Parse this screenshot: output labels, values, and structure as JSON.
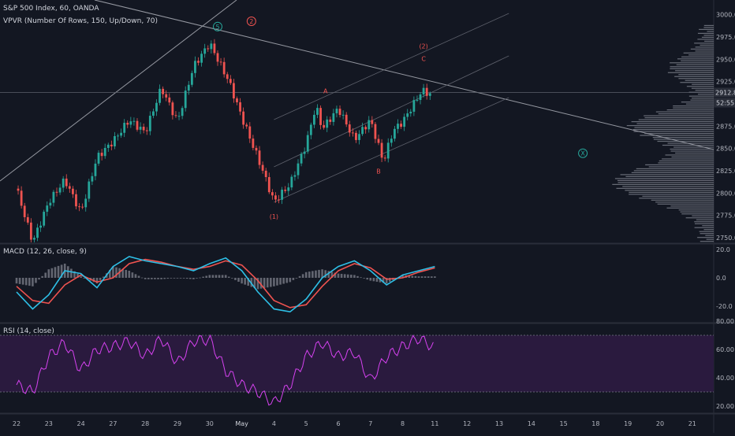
{
  "chart": {
    "title": "S&P 500 Index, 60, OANDA",
    "vpvr_label": "VPVR (Number Of Rows, 150, Up/Down, 70)",
    "macd_label": "MACD (12, 26, close, 9)",
    "rsi_label": "RSI (14, close)",
    "last_price": "2912.8",
    "countdown": "52:55"
  },
  "colors": {
    "background": "#131722",
    "up": "#26a69a",
    "down": "#ef5350",
    "macd": "#2ebfe6",
    "signal": "#ef5350",
    "rsi": "#d642f0",
    "rsi_band": "#2a1a3e",
    "trendline": "#9598a1",
    "wave_teal": "#26a69a",
    "wave_red": "#ef5350"
  },
  "chart_data": [
    {
      "type": "candlestick",
      "name": "price",
      "x_ticks": [
        "22",
        "23",
        "24",
        "27",
        "28",
        "29",
        "30",
        "May",
        "4",
        "5",
        "6",
        "7",
        "8",
        "11",
        "12",
        "13",
        "14",
        "15",
        "18",
        "19",
        "20",
        "21"
      ],
      "y_ticks": [
        2750.0,
        2775.0,
        2800.0,
        2825.0,
        2850.0,
        2875.0,
        2900.0,
        2925.0,
        2950.0,
        2975.0,
        3000.0
      ],
      "ylim": [
        2738,
        3003
      ],
      "path_days": [
        0,
        0.5,
        1.0,
        1.5,
        2.0,
        2.5,
        3.0,
        3.5,
        4.0,
        4.5,
        5.0,
        5.5,
        6.0,
        6.6,
        7.0,
        7.6,
        8.0,
        8.5,
        9.0,
        9.3,
        9.5,
        10.0,
        10.5,
        11.0,
        11.4,
        11.7,
        12.0,
        12.6,
        12.9
      ],
      "path_prices": [
        2805,
        2745,
        2790,
        2815,
        2778,
        2840,
        2858,
        2882,
        2868,
        2918,
        2880,
        2942,
        2968,
        2925,
        2885,
        2830,
        2790,
        2810,
        2855,
        2898,
        2872,
        2895,
        2860,
        2882,
        2835,
        2870,
        2880,
        2915,
        2910
      ],
      "annotations": [
        {
          "text": "5",
          "day": 6.25,
          "price": 2984,
          "circle": true,
          "color": "teal"
        },
        {
          "text": "2",
          "day": 7.3,
          "price": 2990,
          "circle": true,
          "color": "red"
        },
        {
          "text": "(2)",
          "day": 12.65,
          "price": 2962,
          "circle": false,
          "color": "red"
        },
        {
          "text": "C",
          "day": 12.65,
          "price": 2948,
          "circle": false,
          "color": "red"
        },
        {
          "text": "A",
          "day": 9.6,
          "price": 2912,
          "circle": false,
          "color": "red"
        },
        {
          "text": "B",
          "day": 11.25,
          "price": 2822,
          "circle": false,
          "color": "red"
        },
        {
          "text": "(1)",
          "day": 8.0,
          "price": 2771,
          "circle": false,
          "color": "red"
        },
        {
          "text": "X",
          "day": 17.6,
          "price": 2842,
          "circle": true,
          "color": "teal"
        }
      ]
    },
    {
      "type": "line",
      "name": "MACD",
      "y_ticks": [
        20.0,
        0.0,
        -20.0
      ],
      "ylim": [
        -31,
        23
      ],
      "series": [
        {
          "name": "MACD",
          "days": [
            0,
            0.5,
            1.0,
            1.5,
            2.0,
            2.5,
            3.0,
            3.5,
            4.0,
            4.5,
            5.0,
            5.5,
            6.0,
            6.5,
            7.0,
            7.5,
            8.0,
            8.5,
            9.0,
            9.5,
            10.0,
            10.5,
            11.0,
            11.5,
            12.0,
            12.5,
            13.0
          ],
          "values": [
            -10,
            -22,
            -12,
            5,
            3,
            -7,
            8,
            15,
            12,
            10,
            8,
            5,
            10,
            14,
            5,
            -10,
            -22,
            -24,
            -15,
            0,
            8,
            12,
            5,
            -5,
            2,
            5,
            8
          ]
        },
        {
          "name": "Signal",
          "days": [
            0,
            0.5,
            1.0,
            1.5,
            2.0,
            2.5,
            3.0,
            3.5,
            4.0,
            4.5,
            5.0,
            5.5,
            6.0,
            6.5,
            7.0,
            7.5,
            8.0,
            8.5,
            9.0,
            9.5,
            10.0,
            10.5,
            11.0,
            11.5,
            12.0,
            12.5,
            13.0
          ],
          "values": [
            -6,
            -16,
            -18,
            -5,
            2,
            -3,
            0,
            10,
            13,
            11,
            8,
            6,
            8,
            12,
            9,
            -2,
            -16,
            -21,
            -19,
            -6,
            5,
            10,
            7,
            -1,
            0,
            4,
            7
          ]
        }
      ]
    },
    {
      "type": "line",
      "name": "RSI",
      "y_ticks": [
        80.0,
        60.0,
        40.0,
        20.0
      ],
      "ylim": [
        17,
        82
      ],
      "band": [
        30,
        70
      ],
      "series": [
        {
          "name": "RSI",
          "days": [
            0,
            0.5,
            1.0,
            1.5,
            2.0,
            2.5,
            3.0,
            3.5,
            4.0,
            4.5,
            5.0,
            5.5,
            6.0,
            6.5,
            7.0,
            7.5,
            8.0,
            8.5,
            9.0,
            9.5,
            10.0,
            10.5,
            11.0,
            11.5,
            12.0,
            12.5,
            13.0
          ],
          "values": [
            35,
            30,
            55,
            65,
            45,
            60,
            62,
            66,
            55,
            68,
            50,
            66,
            67,
            45,
            35,
            30,
            22,
            35,
            55,
            65,
            55,
            58,
            38,
            55,
            62,
            68,
            61
          ]
        }
      ]
    }
  ]
}
